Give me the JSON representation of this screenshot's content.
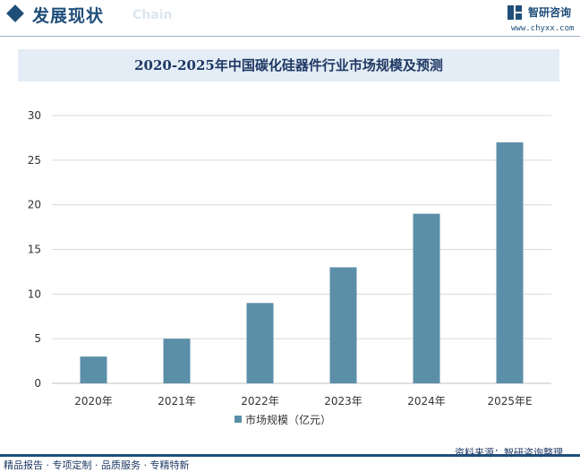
{
  "header": {
    "section_title": "发展现状",
    "section_subtitle": "Chain",
    "brand_name": "智研咨询",
    "brand_url": "www.chyxx.com"
  },
  "chart_data": {
    "type": "bar",
    "title": "2020-2025年中国碳化硅器件行业市场规模及预测",
    "categories": [
      "2020年",
      "2021年",
      "2022年",
      "2023年",
      "2024年",
      "2025年E"
    ],
    "series": [
      {
        "name": "市场规模（亿元）",
        "values": [
          3,
          5,
          9,
          13,
          19,
          27
        ]
      }
    ],
    "ylim": [
      0,
      30
    ],
    "yticks": [
      0,
      5,
      10,
      15,
      20,
      25,
      30
    ],
    "grid": true,
    "legend_position": "bottom",
    "bar_color": "#5b8fa8"
  },
  "footer": {
    "source": "资料来源：智研咨询整理",
    "services": "精品报告 · 专项定制 · 品质服务 · 专精特新"
  }
}
